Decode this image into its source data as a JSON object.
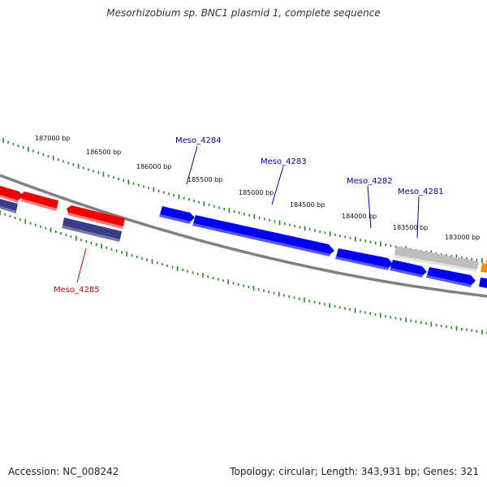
{
  "title": "Mesorhizobium sp. BNC1 plasmid 1, complete sequence",
  "footer": {
    "accession": "Accession: NC_008242",
    "summary": "Topology: circular; Length: 343,931 bp; Genes: 321"
  },
  "scale_labels": [
    {
      "text": "187000 bp"
    },
    {
      "text": "186500 bp"
    },
    {
      "text": "186000 bp"
    },
    {
      "text": "185500 bp"
    },
    {
      "text": "185000 bp"
    },
    {
      "text": "184500 bp"
    },
    {
      "text": "184000 bp"
    },
    {
      "text": "183500 bp"
    },
    {
      "text": "183000 bp"
    }
  ],
  "gene_labels": [
    {
      "text": "Meso_4284",
      "color": "#0000aa"
    },
    {
      "text": "Meso_4283",
      "color": "#0000aa"
    },
    {
      "text": "Meso_4282",
      "color": "#0000aa"
    },
    {
      "text": "Meso_4281",
      "color": "#0000aa"
    },
    {
      "text": "Meso_4285",
      "color": "#cc0000"
    }
  ],
  "colors": {
    "forward_gene": "#0000ee",
    "reverse_gene": "#ee0000",
    "pseudo_gene": "#3b3b8a",
    "grey_gene": "#bdbdbd",
    "orange_gene": "#ff8800",
    "backbone": "#808080",
    "ticks": "#1a8a1a"
  }
}
